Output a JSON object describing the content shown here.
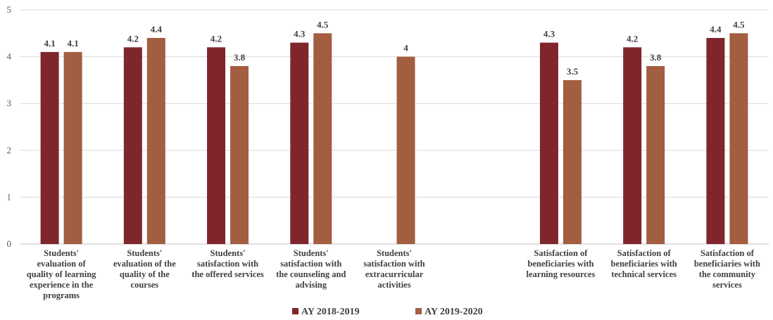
{
  "chart_data": {
    "type": "bar",
    "title": "",
    "xlabel": "",
    "ylabel": "",
    "ylim": [
      0,
      5
    ],
    "yticks": [
      "0",
      "1",
      "2",
      "3",
      "4",
      "5"
    ],
    "grid": true,
    "legend_position": "bottom",
    "categories": [
      [
        "Students'",
        "evaluation of",
        "quality of learning",
        "experience in the",
        "programs"
      ],
      [
        "Students'",
        "evaluation of the",
        "quality of the",
        "courses"
      ],
      [
        "Students'",
        "satisfaction with",
        "the offered services"
      ],
      [
        "Students'",
        "satisfaction with",
        "the counseling and",
        "advising"
      ],
      [
        "Students'",
        "satisfaction with",
        "extracurricular",
        "activities"
      ],
      [],
      [
        "Satisfaction of",
        "beneficiaries with",
        "learning resources"
      ],
      [
        "Satisfaction of",
        "beneficiaries with",
        "technical services"
      ],
      [
        "Satisfaction of",
        "beneficiaries with",
        "the community",
        "services"
      ]
    ],
    "series": [
      {
        "name": "AY 2018-2019",
        "color": "#7f262c",
        "values": [
          4.1,
          4.2,
          4.2,
          4.3,
          null,
          null,
          4.3,
          4.2,
          4.4
        ],
        "labels": [
          "4.1",
          "4.2",
          "4.2",
          "4.3",
          "",
          "",
          "4.3",
          "4.2",
          "4.4"
        ]
      },
      {
        "name": "AY 2019-2020",
        "color": "#a35d40",
        "values": [
          4.1,
          4.4,
          3.8,
          4.5,
          4,
          null,
          3.5,
          3.8,
          4.5
        ],
        "labels": [
          "4.1",
          "4.4",
          "3.8",
          "4.5",
          "4",
          "",
          "3.5",
          "3.8",
          "4.5"
        ]
      }
    ]
  }
}
